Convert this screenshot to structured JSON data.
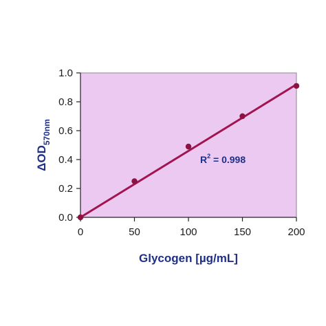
{
  "chart_data": {
    "type": "scatter",
    "x": [
      0,
      50,
      100,
      150,
      200
    ],
    "y": [
      0.0,
      0.25,
      0.49,
      0.7,
      0.91
    ],
    "fit": {
      "type": "linear",
      "x_range": [
        0,
        200
      ],
      "y_range": [
        0.0,
        0.92
      ]
    },
    "xlim": [
      0,
      200
    ],
    "ylim": [
      0.0,
      1.0
    ],
    "x_ticks": [
      0,
      50,
      100,
      150,
      200
    ],
    "y_ticks": [
      0.0,
      0.2,
      0.4,
      0.6,
      0.8,
      1.0
    ],
    "x_tick_labels": [
      "0",
      "50",
      "100",
      "150",
      "200"
    ],
    "y_tick_labels": [
      "0.0",
      "0.2",
      "0.4",
      "0.6",
      "0.8",
      "1.0"
    ],
    "xlabel": "Glycogen [µg/mL]",
    "ylabel": {
      "main": "ΔOD",
      "subscript": "570nm"
    },
    "annotation": {
      "base": "R",
      "superscript": "2",
      "rest": " = 0.998"
    },
    "grid": false,
    "colors": {
      "plot_background": "#ecc9f1",
      "line": "#a0154f",
      "marker": "#8c1244",
      "axis_text": "#1f2f86"
    }
  }
}
